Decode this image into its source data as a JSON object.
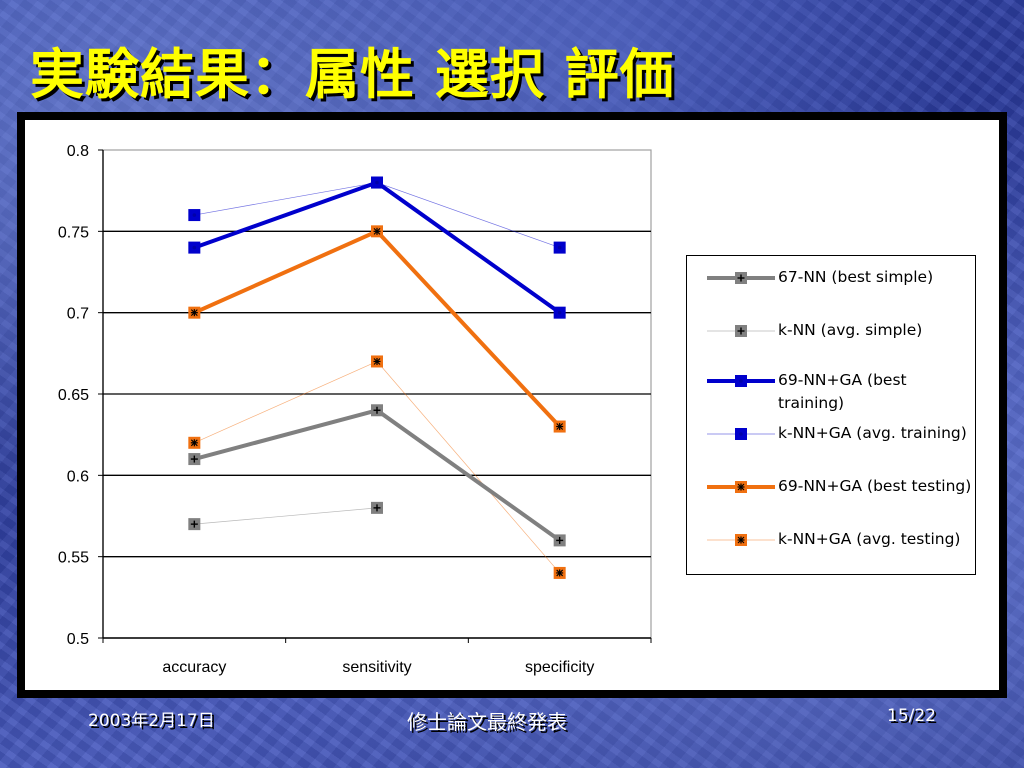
{
  "slide": {
    "title": "実験結果：属性 選択 評価",
    "footer_date": "2003年2月17日",
    "footer_center": "修士論文最終発表",
    "page_number": "15/22"
  },
  "chart_data": {
    "type": "line",
    "categories": [
      "accuracy",
      "sensitivity",
      "specificity"
    ],
    "ylim": [
      0.5,
      0.8
    ],
    "yticks": [
      "0.8",
      "0.75",
      "0.7",
      "0.65",
      "0.6",
      "0.55",
      "0.5"
    ],
    "grid": true,
    "legend_position": "right",
    "series": [
      {
        "name": "67-NN (best simple)",
        "values": [
          0.61,
          0.64,
          0.56
        ],
        "color": "#808080",
        "marker": "plus",
        "line": "thick"
      },
      {
        "name": "k-NN (avg. simple)",
        "values": [
          0.57,
          0.58,
          null
        ],
        "color": "#808080",
        "marker": "plus",
        "line": "thin"
      },
      {
        "name": "69-NN+GA (best training)",
        "values": [
          0.74,
          0.78,
          0.7
        ],
        "color": "#0000cc",
        "marker": "square",
        "line": "thick"
      },
      {
        "name": "k-NN+GA (avg. training)",
        "values": [
          0.76,
          0.78,
          0.74
        ],
        "color": "#0000cc",
        "marker": "square",
        "line": "thin"
      },
      {
        "name": "69-NN+GA (best testing)",
        "values": [
          0.7,
          0.75,
          0.63
        ],
        "color": "#f07010",
        "marker": "star",
        "line": "thick"
      },
      {
        "name": "k-NN+GA (avg. testing)",
        "values": [
          0.62,
          0.67,
          0.54
        ],
        "color": "#f07010",
        "marker": "star",
        "line": "thin"
      }
    ]
  }
}
